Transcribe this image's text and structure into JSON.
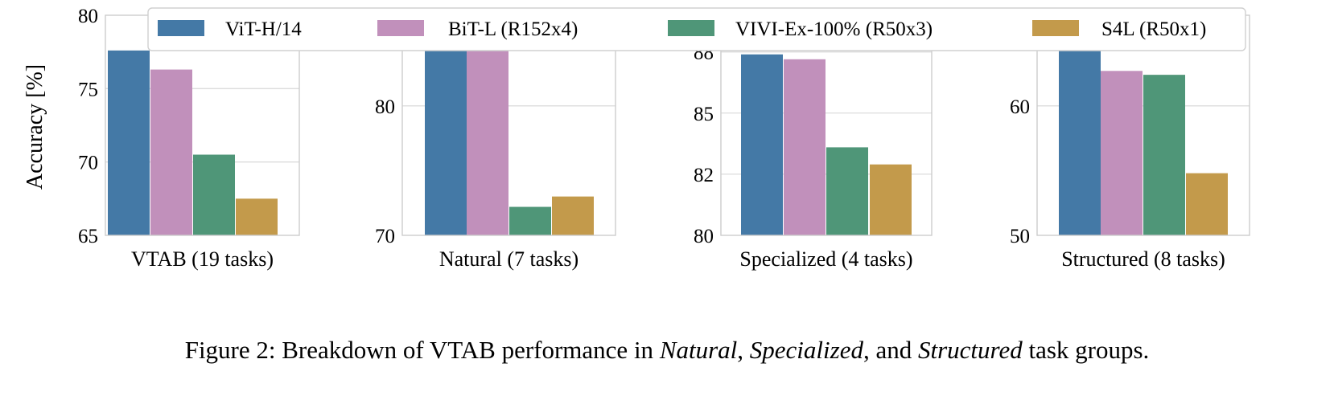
{
  "chart_data": {
    "type": "bar",
    "ylabel": "Accuracy [%]",
    "legend": {
      "placement": "top",
      "entries": [
        "ViT-H/14",
        "BiT-L (R152x4)",
        "VIVI-Ex-100% (R50x3)",
        "S4L (R50x1)"
      ]
    },
    "series_colors": [
      "#4479a6",
      "#c190bb",
      "#4f9678",
      "#c39a4b"
    ],
    "grid": true,
    "panels": [
      {
        "xlabel": "VTAB (19 tasks)",
        "ylim": [
          65,
          80
        ],
        "yticks": [
          65,
          70,
          75,
          80
        ],
        "ytick_labels": [
          "65",
          "70",
          "75",
          "80"
        ],
        "values": [
          77.6,
          76.3,
          70.5,
          67.5
        ]
      },
      {
        "xlabel": "Natural (7 tasks)",
        "ylim": [
          70,
          87
        ],
        "yticks": [
          70,
          80
        ],
        "ytick_labels": [
          "70",
          "80"
        ],
        "values": [
          86.3,
          85.2,
          72.2,
          73.0
        ]
      },
      {
        "xlabel": "Specialized (4 tasks)",
        "ylim": [
          80,
          89
        ],
        "yticks": [
          80,
          82.5,
          85,
          87.5
        ],
        "ytick_labels": [
          "80",
          "82",
          "85",
          "88"
        ],
        "values": [
          87.4,
          87.2,
          83.6,
          82.9
        ]
      },
      {
        "xlabel": "Structured (8 tasks)",
        "ylim": [
          50,
          67
        ],
        "yticks": [
          50,
          60
        ],
        "ytick_labels": [
          "50",
          "60"
        ],
        "values": [
          65.0,
          62.7,
          62.4,
          54.8
        ]
      }
    ]
  },
  "caption": {
    "prefix": "Figure 2: Breakdown of VTAB performance in ",
    "em1": "Natural",
    "sep1": ", ",
    "em2": "Specialized",
    "sep2": ", and ",
    "em3": "Structured",
    "suffix": " task groups."
  }
}
